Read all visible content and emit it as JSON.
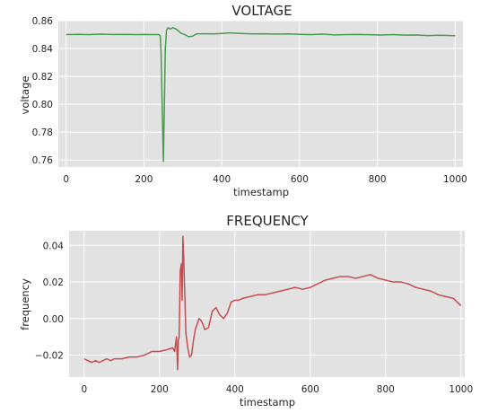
{
  "chart_data": [
    {
      "type": "line",
      "title": "VOLTAGE",
      "xlabel": "timestamp",
      "ylabel": "voltage",
      "xlim": [
        -20,
        1020
      ],
      "ylim": [
        0.755,
        0.86
      ],
      "xticks": [
        0,
        200,
        400,
        600,
        800,
        1000
      ],
      "xtick_labels": [
        "0",
        "200",
        "400",
        "600",
        "800",
        "1000"
      ],
      "yticks": [
        0.76,
        0.78,
        0.8,
        0.82,
        0.84,
        0.86
      ],
      "ytick_labels": [
        "0.76",
        "0.78",
        "0.80",
        "0.82",
        "0.84",
        "0.86"
      ],
      "grid": true,
      "series": [
        {
          "color": "#4a9a4f",
          "x": [
            0,
            30,
            60,
            90,
            120,
            150,
            180,
            200,
            220,
            238,
            242,
            244,
            246,
            248,
            250,
            252,
            255,
            258,
            262,
            268,
            275,
            285,
            295,
            305,
            315,
            325,
            335,
            345,
            360,
            380,
            400,
            420,
            450,
            480,
            510,
            540,
            570,
            600,
            630,
            660,
            690,
            720,
            750,
            780,
            810,
            840,
            870,
            900,
            930,
            960,
            1000
          ],
          "y": [
            0.85,
            0.8502,
            0.85,
            0.8503,
            0.8501,
            0.8502,
            0.85,
            0.8501,
            0.85,
            0.85,
            0.849,
            0.838,
            0.812,
            0.785,
            0.759,
            0.79,
            0.84,
            0.853,
            0.855,
            0.854,
            0.855,
            0.8535,
            0.851,
            0.85,
            0.8485,
            0.8488,
            0.8505,
            0.8506,
            0.8506,
            0.8505,
            0.8508,
            0.8512,
            0.8508,
            0.8505,
            0.8506,
            0.8503,
            0.8505,
            0.8502,
            0.85,
            0.8503,
            0.8498,
            0.85,
            0.8501,
            0.8499,
            0.8497,
            0.85,
            0.8496,
            0.8497,
            0.8493,
            0.8495,
            0.8492
          ]
        }
      ]
    },
    {
      "type": "line",
      "title": "FREQUENCY",
      "xlabel": "timestamp",
      "ylabel": "frequency",
      "xlim": [
        -40,
        1010
      ],
      "ylim": [
        -0.032,
        0.048
      ],
      "xticks": [
        0,
        200,
        400,
        600,
        800,
        1000
      ],
      "xtick_labels": [
        "0",
        "200",
        "400",
        "600",
        "800",
        "1000"
      ],
      "yticks": [
        -0.02,
        0.0,
        0.02,
        0.04
      ],
      "ytick_labels": [
        "−0.02",
        "0.00",
        "0.02",
        "0.04"
      ],
      "grid": true,
      "series": [
        {
          "color": "#c44e52",
          "x": [
            0,
            10,
            20,
            30,
            40,
            50,
            60,
            70,
            80,
            100,
            120,
            140,
            160,
            180,
            200,
            220,
            235,
            240,
            245,
            248,
            250,
            252,
            255,
            258,
            260,
            262,
            264,
            266,
            270,
            275,
            280,
            285,
            290,
            295,
            300,
            305,
            310,
            315,
            320,
            330,
            340,
            350,
            360,
            370,
            380,
            390,
            400,
            410,
            420,
            440,
            460,
            480,
            500,
            520,
            540,
            560,
            580,
            600,
            620,
            640,
            660,
            680,
            700,
            720,
            740,
            760,
            780,
            800,
            820,
            840,
            860,
            880,
            900,
            920,
            940,
            960,
            980,
            1000
          ],
          "y": [
            -0.022,
            -0.023,
            -0.024,
            -0.023,
            -0.024,
            -0.023,
            -0.022,
            -0.023,
            -0.022,
            -0.022,
            -0.021,
            -0.021,
            -0.02,
            -0.018,
            -0.018,
            -0.017,
            -0.016,
            -0.018,
            -0.01,
            -0.028,
            -0.012,
            -0.01,
            0.026,
            0.03,
            0.01,
            0.045,
            0.035,
            0.02,
            -0.008,
            -0.016,
            -0.021,
            -0.02,
            -0.012,
            -0.006,
            -0.003,
            -0.0,
            -0.001,
            -0.003,
            -0.006,
            -0.005,
            0.004,
            0.006,
            0.002,
            0.0,
            0.003,
            0.009,
            0.01,
            0.01,
            0.011,
            0.012,
            0.013,
            0.013,
            0.014,
            0.015,
            0.016,
            0.017,
            0.016,
            0.017,
            0.019,
            0.021,
            0.022,
            0.023,
            0.023,
            0.022,
            0.023,
            0.024,
            0.022,
            0.021,
            0.02,
            0.02,
            0.019,
            0.017,
            0.016,
            0.015,
            0.013,
            0.012,
            0.011,
            0.007
          ]
        }
      ]
    }
  ]
}
